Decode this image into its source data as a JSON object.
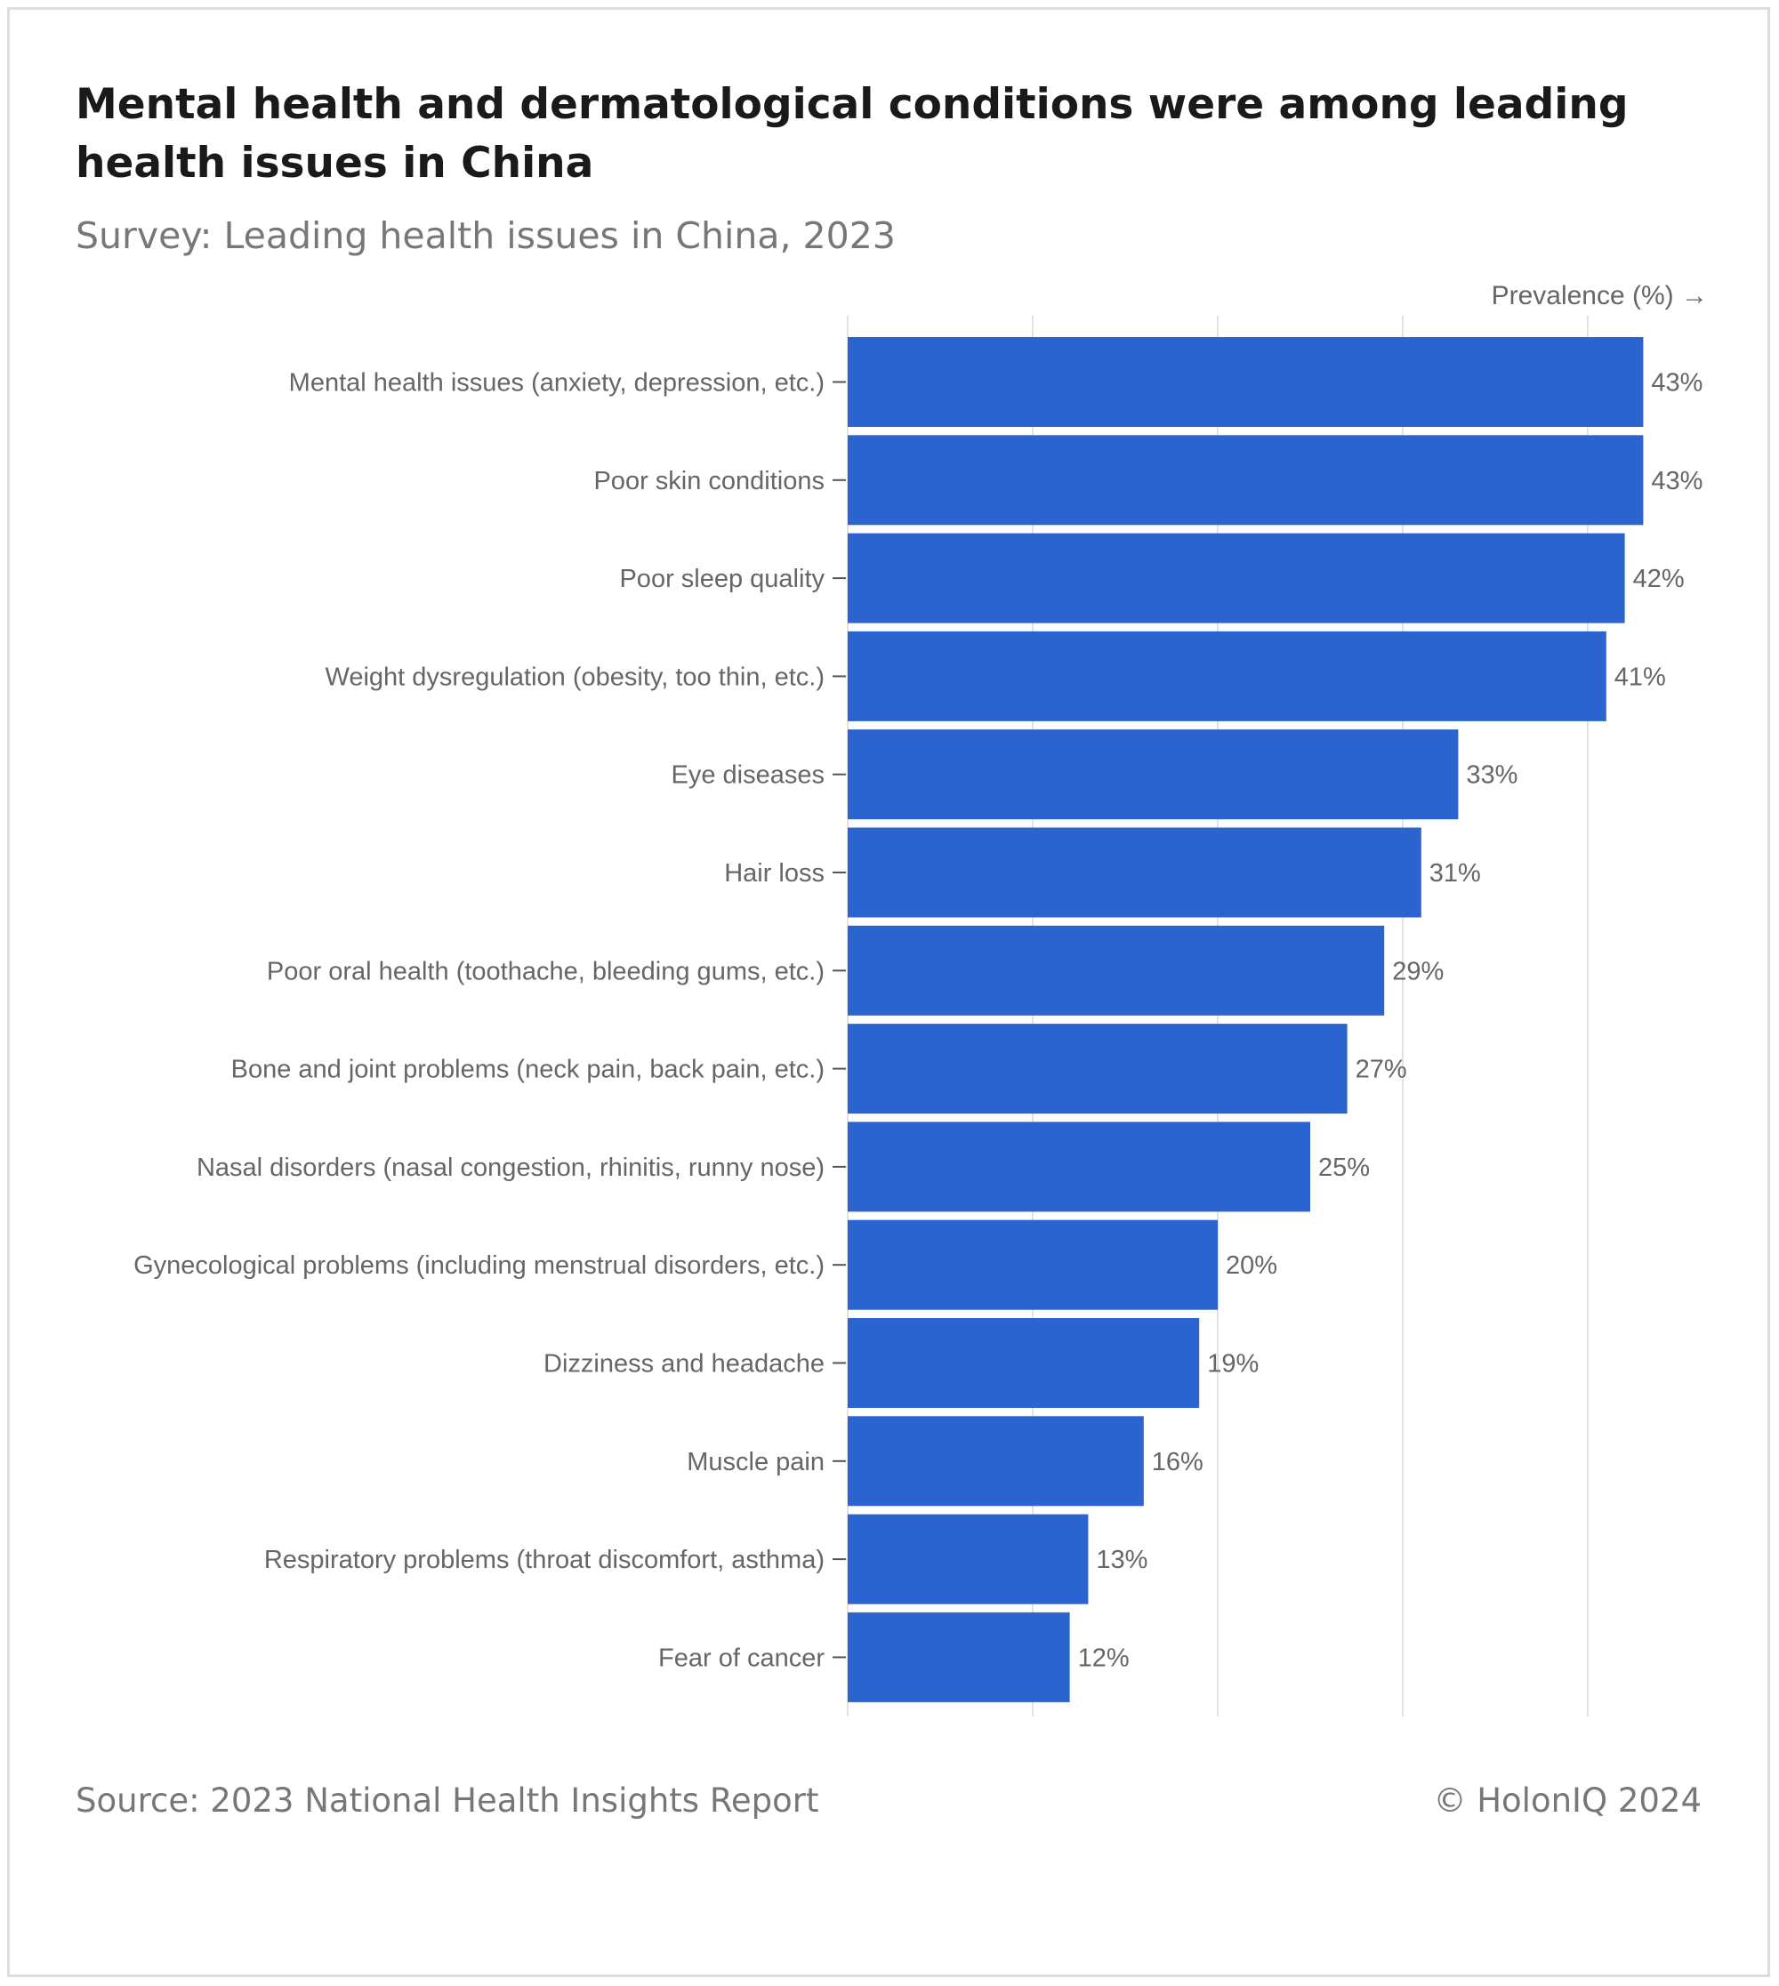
{
  "header": {
    "title": "Mental health and dermatological conditions were among leading health issues in China",
    "subtitle": "Survey: Leading health issues in China, 2023"
  },
  "footer": {
    "source": "Source: 2023 National Health Insights Report",
    "credit": "© HolonIQ 2024"
  },
  "colors": {
    "bar": "#2b64cf",
    "grid": "#e2e2e2",
    "label": "#666666",
    "tick": "#555555"
  },
  "chart_data": {
    "type": "bar",
    "orientation": "horizontal",
    "title": "Mental health and dermatological conditions were among leading health issues in China",
    "subtitle": "Survey: Leading health issues in China, 2023",
    "xlabel": "Prevalence (%) →",
    "ylabel": "",
    "xlim": [
      0,
      45
    ],
    "grid": true,
    "gridlines_at": [
      0,
      10,
      20,
      30,
      40
    ],
    "x_tick_labels_shown": false,
    "categories": [
      "Mental health issues (anxiety, depression, etc.)",
      "Poor skin conditions",
      "Poor sleep quality",
      "Weight dysregulation (obesity, too thin, etc.)",
      "Eye diseases",
      "Hair loss",
      "Poor oral health (toothache, bleeding gums, etc.)",
      "Bone and joint problems (neck pain, back pain, etc.)",
      "Nasal disorders (nasal congestion, rhinitis, runny nose)",
      "Gynecological problems (including menstrual disorders, etc.)",
      "Dizziness and headache",
      "Muscle pain",
      "Respiratory problems (throat discomfort, asthma)",
      "Fear of cancer"
    ],
    "values": [
      43,
      43,
      42,
      41,
      33,
      31,
      29,
      27,
      25,
      20,
      19,
      16,
      13,
      12
    ],
    "data_labels": [
      "43%",
      "43%",
      "42%",
      "41%",
      "33%",
      "31%",
      "29%",
      "27%",
      "25%",
      "20%",
      "19%",
      "16%",
      "13%",
      "12%"
    ]
  }
}
